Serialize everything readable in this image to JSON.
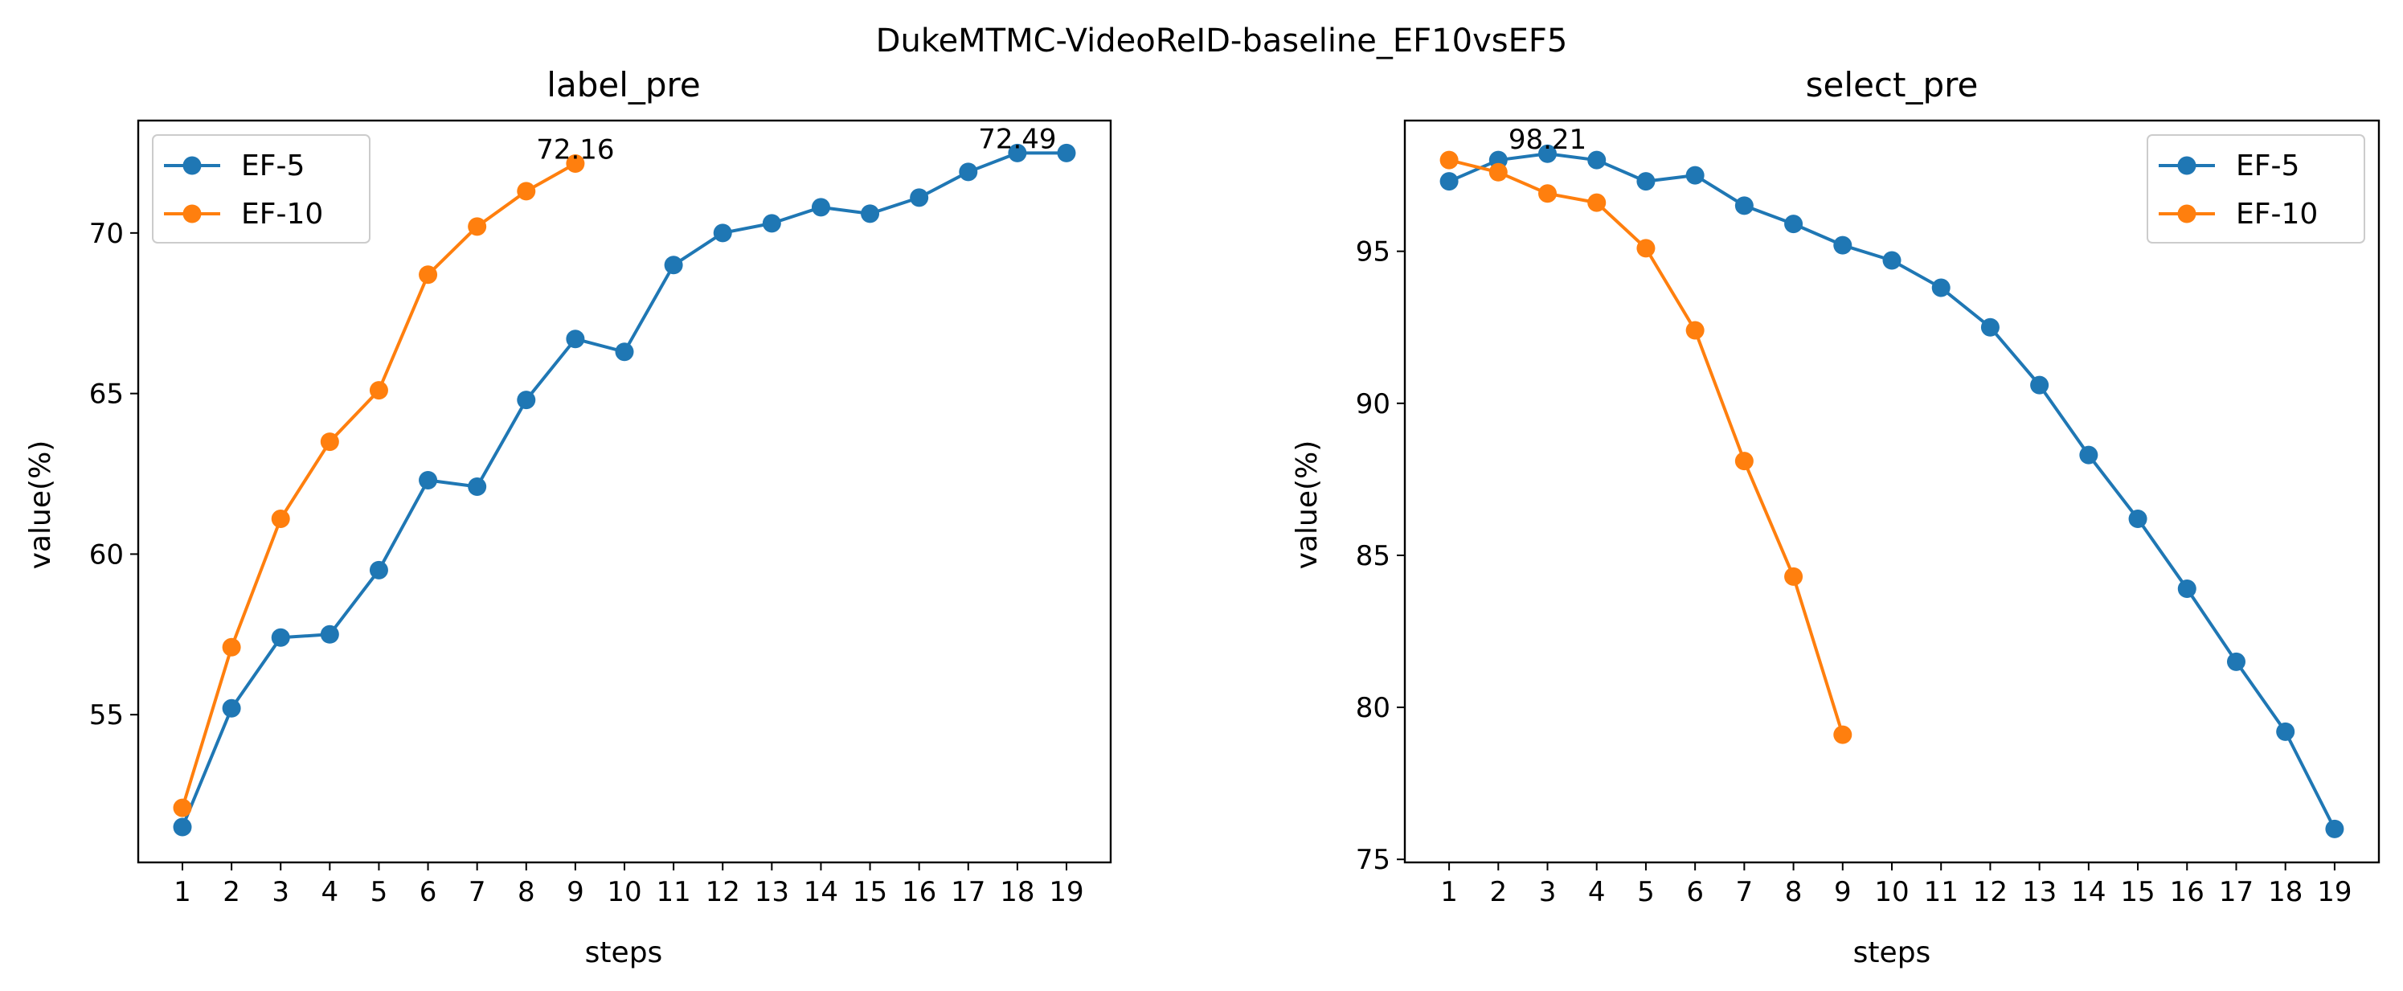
{
  "figure_title": "DukeMTMC-VideoReID-baseline_EF10vsEF5",
  "colors": {
    "EF-5": "#1f77b4",
    "EF-10": "#ff7f0e"
  },
  "chart_data": [
    {
      "type": "line",
      "title": "label_pre",
      "xlabel": "steps",
      "ylabel": "value(%)",
      "x_ticks": [
        1,
        2,
        3,
        4,
        5,
        6,
        7,
        8,
        9,
        10,
        11,
        12,
        13,
        14,
        15,
        16,
        17,
        18,
        19
      ],
      "y_ticks": [
        55,
        60,
        65,
        70
      ],
      "xlim": [
        0.1,
        19.9
      ],
      "ylim": [
        50.4,
        73.5
      ],
      "legend_position": "upper-left",
      "series": [
        {
          "name": "EF-5",
          "color": "#1f77b4",
          "x": [
            1,
            2,
            3,
            4,
            5,
            6,
            7,
            8,
            9,
            10,
            11,
            12,
            13,
            14,
            15,
            16,
            17,
            18,
            19
          ],
          "values": [
            51.5,
            55.2,
            57.4,
            57.5,
            59.5,
            62.3,
            62.1,
            64.8,
            66.7,
            66.3,
            69.0,
            70.0,
            70.3,
            70.8,
            70.6,
            71.1,
            71.9,
            72.49,
            72.49
          ]
        },
        {
          "name": "EF-10",
          "color": "#ff7f0e",
          "x": [
            1,
            2,
            3,
            4,
            5,
            6,
            7,
            8,
            9
          ],
          "values": [
            52.1,
            57.1,
            61.1,
            63.5,
            65.1,
            68.7,
            70.2,
            71.3,
            72.16
          ]
        }
      ],
      "annotations": [
        {
          "text": "72.16",
          "x": 9,
          "y": 72.16
        },
        {
          "text": "72.49",
          "x": 18,
          "y": 72.49
        }
      ]
    },
    {
      "type": "line",
      "title": "select_pre",
      "xlabel": "steps",
      "ylabel": "value(%)",
      "x_ticks": [
        1,
        2,
        3,
        4,
        5,
        6,
        7,
        8,
        9,
        10,
        11,
        12,
        13,
        14,
        15,
        16,
        17,
        18,
        19
      ],
      "y_ticks": [
        75,
        80,
        85,
        90,
        95
      ],
      "xlim": [
        0.1,
        19.9
      ],
      "ylim": [
        74.9,
        99.3
      ],
      "legend_position": "upper-right",
      "series": [
        {
          "name": "EF-5",
          "color": "#1f77b4",
          "x": [
            1,
            2,
            3,
            4,
            5,
            6,
            7,
            8,
            9,
            10,
            11,
            12,
            13,
            14,
            15,
            16,
            17,
            18,
            19
          ],
          "values": [
            97.3,
            98.0,
            98.21,
            98.0,
            97.3,
            97.5,
            96.5,
            95.9,
            95.2,
            94.7,
            93.8,
            92.5,
            90.6,
            88.3,
            86.2,
            83.9,
            81.5,
            79.2,
            76.0
          ]
        },
        {
          "name": "EF-10",
          "color": "#ff7f0e",
          "x": [
            1,
            2,
            3,
            4,
            5,
            6,
            7,
            8,
            9
          ],
          "values": [
            98.0,
            97.6,
            96.9,
            96.6,
            95.1,
            92.4,
            88.1,
            84.3,
            79.1
          ]
        }
      ],
      "annotations": [
        {
          "text": "98.21",
          "x": 3,
          "y": 98.21
        }
      ]
    }
  ]
}
